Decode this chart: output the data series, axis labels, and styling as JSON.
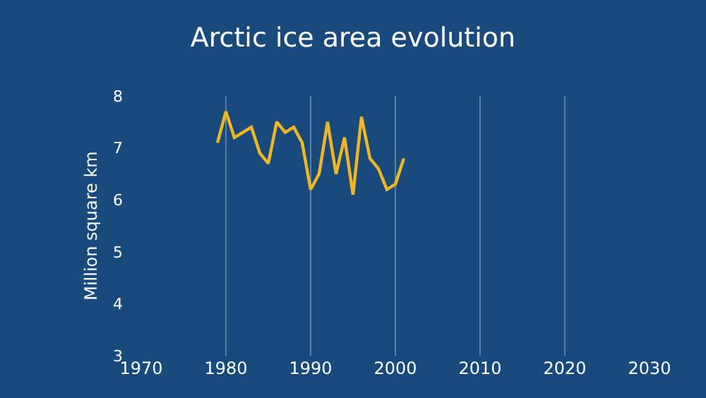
{
  "chart_data": {
    "type": "line",
    "title": "Arctic ice area evolution",
    "ylabel": "Million square km",
    "x": [
      1979,
      1980,
      1981,
      1982,
      1983,
      1984,
      1985,
      1986,
      1987,
      1988,
      1989,
      1990,
      1991,
      1992,
      1993,
      1994,
      1995,
      1996,
      1997,
      1998,
      1999,
      2000,
      2001
    ],
    "series": [
      {
        "color": "#f2b61f",
        "values": [
          7.1,
          7.7,
          7.2,
          7.3,
          7.4,
          6.9,
          6.7,
          7.5,
          7.3,
          7.4,
          7.1,
          6.2,
          6.5,
          7.5,
          6.5,
          7.2,
          6.1,
          7.6,
          6.8,
          6.6,
          6.2,
          6.3,
          6.8
        ]
      }
    ],
    "xlim": [
      1970,
      2030
    ],
    "xticks": [
      1970,
      1980,
      1990,
      2000,
      2010,
      2020,
      2030
    ],
    "ylim": [
      3,
      8
    ],
    "yticks": [
      3,
      4,
      5,
      6,
      7,
      8
    ],
    "grid": "x",
    "legend": false,
    "marker": "none",
    "line_style": "solid"
  }
}
